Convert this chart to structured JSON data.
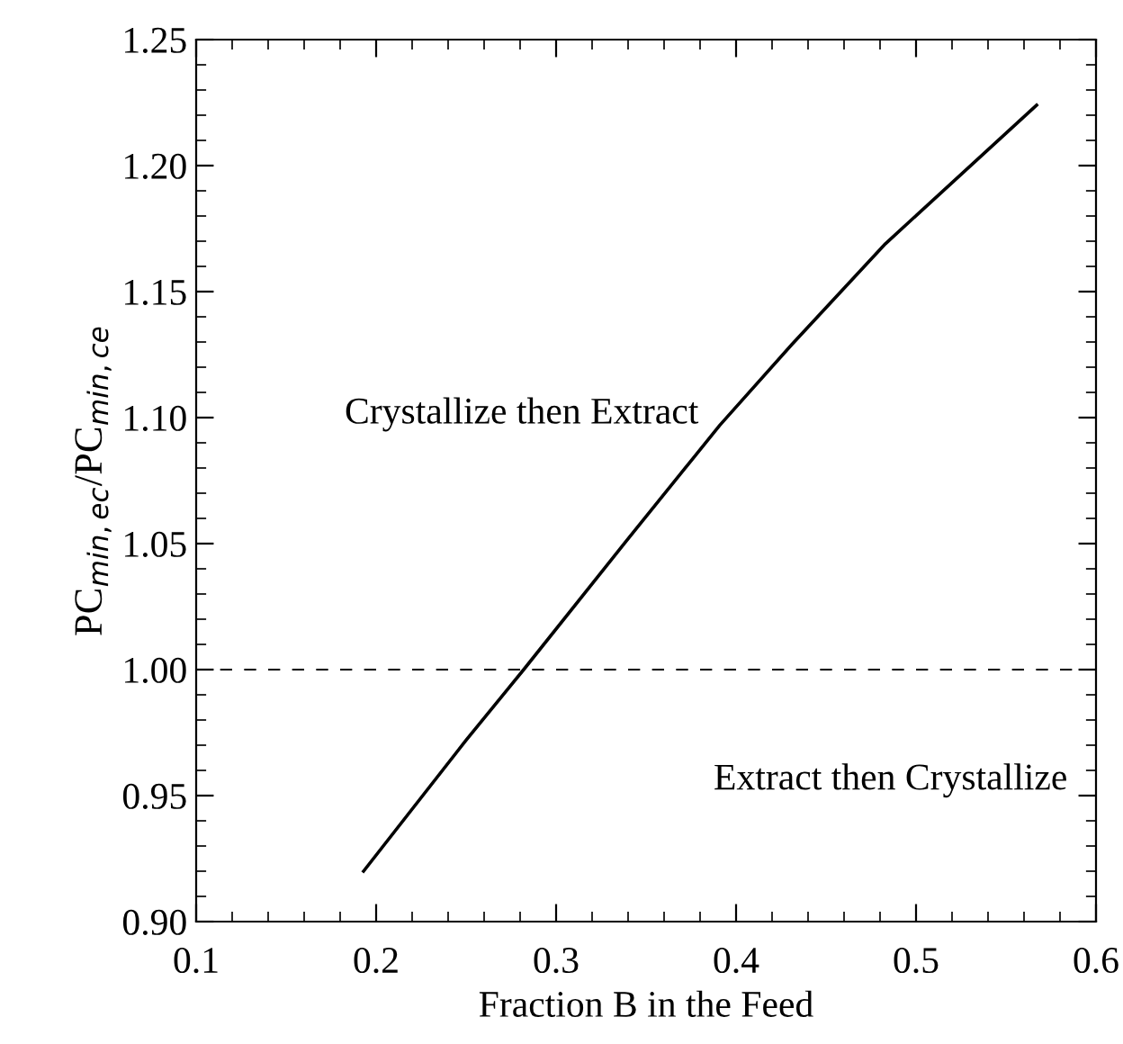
{
  "chart_data": {
    "type": "line",
    "xlabel": "Fraction B in the Feed",
    "ylabel": "PC$_{min,ec}$/PC$_{min,ce}$",
    "series": [
      {
        "color": "#000000",
        "x": [
          0.193,
          0.25,
          0.282,
          0.339,
          0.391,
          0.431,
          0.483,
          0.567
        ],
        "values": [
          0.92,
          0.972,
          1.0,
          1.051,
          1.097,
          1.129,
          1.169,
          1.224
        ]
      }
    ],
    "xlim": [
      0.1,
      0.6
    ],
    "xticks": [
      0.1,
      0.2,
      0.3,
      0.4,
      0.5,
      0.6
    ],
    "ylim": [
      0.9,
      1.25
    ],
    "yticks": [
      {
        "value": 0.9,
        "label": "0.90"
      },
      {
        "value": 0.95,
        "label": "0.95"
      },
      {
        "value": 1.0,
        "label": "1.00"
      },
      {
        "value": 1.05,
        "label": "1.05"
      },
      {
        "value": 1.1,
        "label": "1.10"
      },
      {
        "value": 1.15,
        "label": "1.15"
      },
      {
        "value": 1.2,
        "label": "1.20"
      },
      {
        "value": 1.25,
        "label": "1.25"
      }
    ],
    "ref_lines": [
      {
        "axis": "y",
        "value": 1.0,
        "color": "#000000",
        "line_style": "dashed"
      }
    ],
    "annotations": [
      "Crystallize then Extract",
      "Extract then Crystallize"
    ],
    "line_style": "solid",
    "marker": "none",
    "grid": false,
    "legend": false
  }
}
